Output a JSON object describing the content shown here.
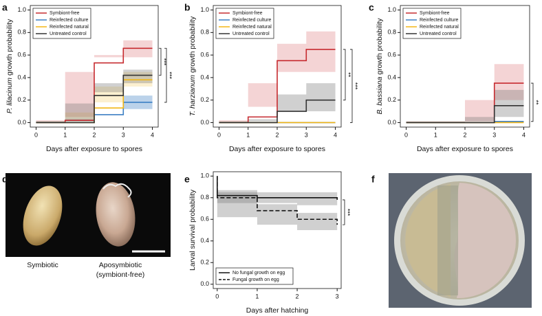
{
  "chart_data": [
    {
      "type": "step",
      "panel": "a",
      "ylabel_italic": "P. lilacinum",
      "ylabel": "growth probability",
      "xlabel": "Days after exposure to spores",
      "x": [
        0,
        1,
        2,
        3,
        4
      ],
      "xlim": [
        -0.2,
        4.2
      ],
      "xticks": [
        0,
        1,
        2,
        3,
        4
      ],
      "ylim": [
        -0.04,
        1.04
      ],
      "yticks": [
        {
          "value": 0,
          "label": "0.0"
        },
        0.2,
        0.4,
        0.6,
        0.8,
        {
          "value": 1,
          "label": "1.0"
        }
      ],
      "legend": "upper left",
      "series": [
        {
          "name": "Symbiont-free",
          "color": "#c62a2f",
          "values": [
            0,
            0.02,
            0.53,
            0.66,
            0.66
          ],
          "lower": [
            0,
            0,
            0.45,
            0.58,
            0.58
          ],
          "upper": [
            0.02,
            0.05,
            0.6,
            0.73,
            0.73
          ]
        },
        {
          "name": "Reinfected culture",
          "color": "#3b7fc4",
          "values": [
            0,
            0,
            0.07,
            0.18,
            0.18
          ],
          "lower": [
            0,
            0,
            0.03,
            0.12,
            0.12
          ],
          "upper": [
            0.01,
            0.01,
            0.12,
            0.24,
            0.24
          ]
        },
        {
          "name": "Reinfected natural",
          "color": "#f2b616",
          "values": [
            0,
            0,
            0.13,
            0.38,
            0.38
          ],
          "lower": [
            0,
            0,
            0.09,
            0.32,
            0.32
          ],
          "upper": [
            0.01,
            0.01,
            0.18,
            0.45,
            0.45
          ]
        },
        {
          "name": "Untreated control",
          "color": "#333333",
          "values": [
            0,
            0,
            0.24,
            0.42,
            0.42
          ],
          "lower": [
            0,
            0,
            0.17,
            0.35,
            0.35
          ],
          "upper": [
            0.01,
            0.01,
            0.27,
            0.47,
            0.47
          ]
        }
      ],
      "annotations": [
        "***",
        "***"
      ]
    },
    {
      "type": "step",
      "panel": "b",
      "ylabel_italic": "T. harzianum",
      "ylabel": "growth probability",
      "xlabel": "Days after exposure to spores",
      "x": [
        0,
        1,
        2,
        3,
        4
      ],
      "xlim": [
        -0.2,
        4.2
      ],
      "xticks": [
        0,
        1,
        2,
        3,
        4
      ],
      "ylim": [
        -0.04,
        1.04
      ],
      "yticks": [
        {
          "value": 0,
          "label": "0.0"
        },
        0.2,
        0.4,
        0.6,
        0.8,
        {
          "value": 1,
          "label": "1.0"
        }
      ],
      "legend": "upper left",
      "series": [
        {
          "name": "Symbiont-free",
          "color": "#c62a2f",
          "values": [
            0,
            0.05,
            0.55,
            0.65,
            0.65
          ],
          "lower": [
            0,
            0,
            0.35,
            0.45,
            0.45
          ],
          "upper": [
            0.02,
            0.14,
            0.7,
            0.81,
            0.81
          ]
        },
        {
          "name": "Reinfected culture",
          "color": "#3b7fc4",
          "values": [
            0,
            0,
            0,
            0,
            0
          ]
        },
        {
          "name": "Reinfected natural",
          "color": "#f2b616",
          "values": [
            0,
            0,
            0,
            0,
            0
          ]
        },
        {
          "name": "Untreated control",
          "color": "#333333",
          "values": [
            0,
            0,
            0.1,
            0.2,
            0.2
          ],
          "lower": [
            0,
            0,
            0.03,
            0.1,
            0.1
          ],
          "upper": [
            0.01,
            0.01,
            0.25,
            0.35,
            0.35
          ]
        }
      ],
      "annotations": [
        "**",
        "***"
      ]
    },
    {
      "type": "step",
      "panel": "c",
      "ylabel_italic": "B. bassiana",
      "ylabel": "growth probability",
      "xlabel": "Days after exposure to spores",
      "x": [
        0,
        1,
        2,
        3,
        4
      ],
      "xlim": [
        -0.2,
        4.2
      ],
      "xticks": [
        0,
        1,
        2,
        3,
        4
      ],
      "ylim": [
        -0.04,
        1.04
      ],
      "yticks": [
        {
          "value": 0,
          "label": "0.0"
        },
        0.2,
        0.4,
        0.6,
        0.8,
        {
          "value": 1,
          "label": "1.0"
        }
      ],
      "legend": "upper left",
      "series": [
        {
          "name": "Symbiont-free",
          "color": "#c62a2f",
          "values": [
            0,
            0,
            0,
            0.35,
            0.35
          ],
          "lower": [
            0,
            0,
            0,
            0.2,
            0.2
          ],
          "upper": [
            0.01,
            0.01,
            0.01,
            0.52,
            0.52
          ]
        },
        {
          "name": "Reinfected culture",
          "color": "#3b7fc4",
          "values": [
            0,
            0,
            0,
            0.01,
            0.01
          ]
        },
        {
          "name": "Reinfected natural",
          "color": "#f2b616",
          "values": [
            0,
            0,
            0,
            0,
            0
          ]
        },
        {
          "name": "Untreated control",
          "color": "#333333",
          "values": [
            0,
            0,
            0,
            0.15,
            0.15
          ],
          "lower": [
            0,
            0,
            0,
            0.05,
            0.05
          ],
          "upper": [
            0.01,
            0.01,
            0.01,
            0.29,
            0.29
          ]
        }
      ],
      "annotations": [
        "**"
      ]
    },
    {
      "type": "step",
      "panel": "e",
      "ylabel": "Larval survival probability",
      "xlabel": "Days after hatching",
      "x": [
        0,
        0,
        1,
        2,
        3
      ],
      "xlim": [
        -0.1,
        3.1
      ],
      "xticks": [
        0,
        1,
        2,
        3
      ],
      "ylim": [
        -0.04,
        1.04
      ],
      "yticks": [
        {
          "value": 0,
          "label": "0.0"
        },
        0.2,
        0.4,
        0.6,
        0.8,
        {
          "value": 1,
          "label": "1.0"
        }
      ],
      "legend": "lower left",
      "series": [
        {
          "name": "No fungal growth on egg",
          "color": "#111111",
          "dash": false,
          "values": [
            1,
            0.82,
            0.8,
            0.8,
            0.78
          ],
          "lower": [
            1,
            0.77,
            0.75,
            0.75,
            0.73
          ],
          "upper": [
            1,
            0.87,
            0.85,
            0.85,
            0.83
          ]
        },
        {
          "name": "Fungal growth on egg",
          "color": "#111111",
          "dash": true,
          "values": [
            1,
            0.8,
            0.68,
            0.6,
            0.55
          ],
          "lower": [
            1,
            0.75,
            0.62,
            0.55,
            0.5
          ],
          "upper": [
            1,
            0.85,
            0.74,
            0.66,
            0.6
          ]
        }
      ],
      "annotations": [
        "***"
      ]
    }
  ],
  "images": [
    {
      "panel": "d",
      "captions": [
        "Symbiotic",
        "Aposymbiotic",
        "(symbiont-free)"
      ]
    },
    {
      "panel": "f"
    }
  ]
}
